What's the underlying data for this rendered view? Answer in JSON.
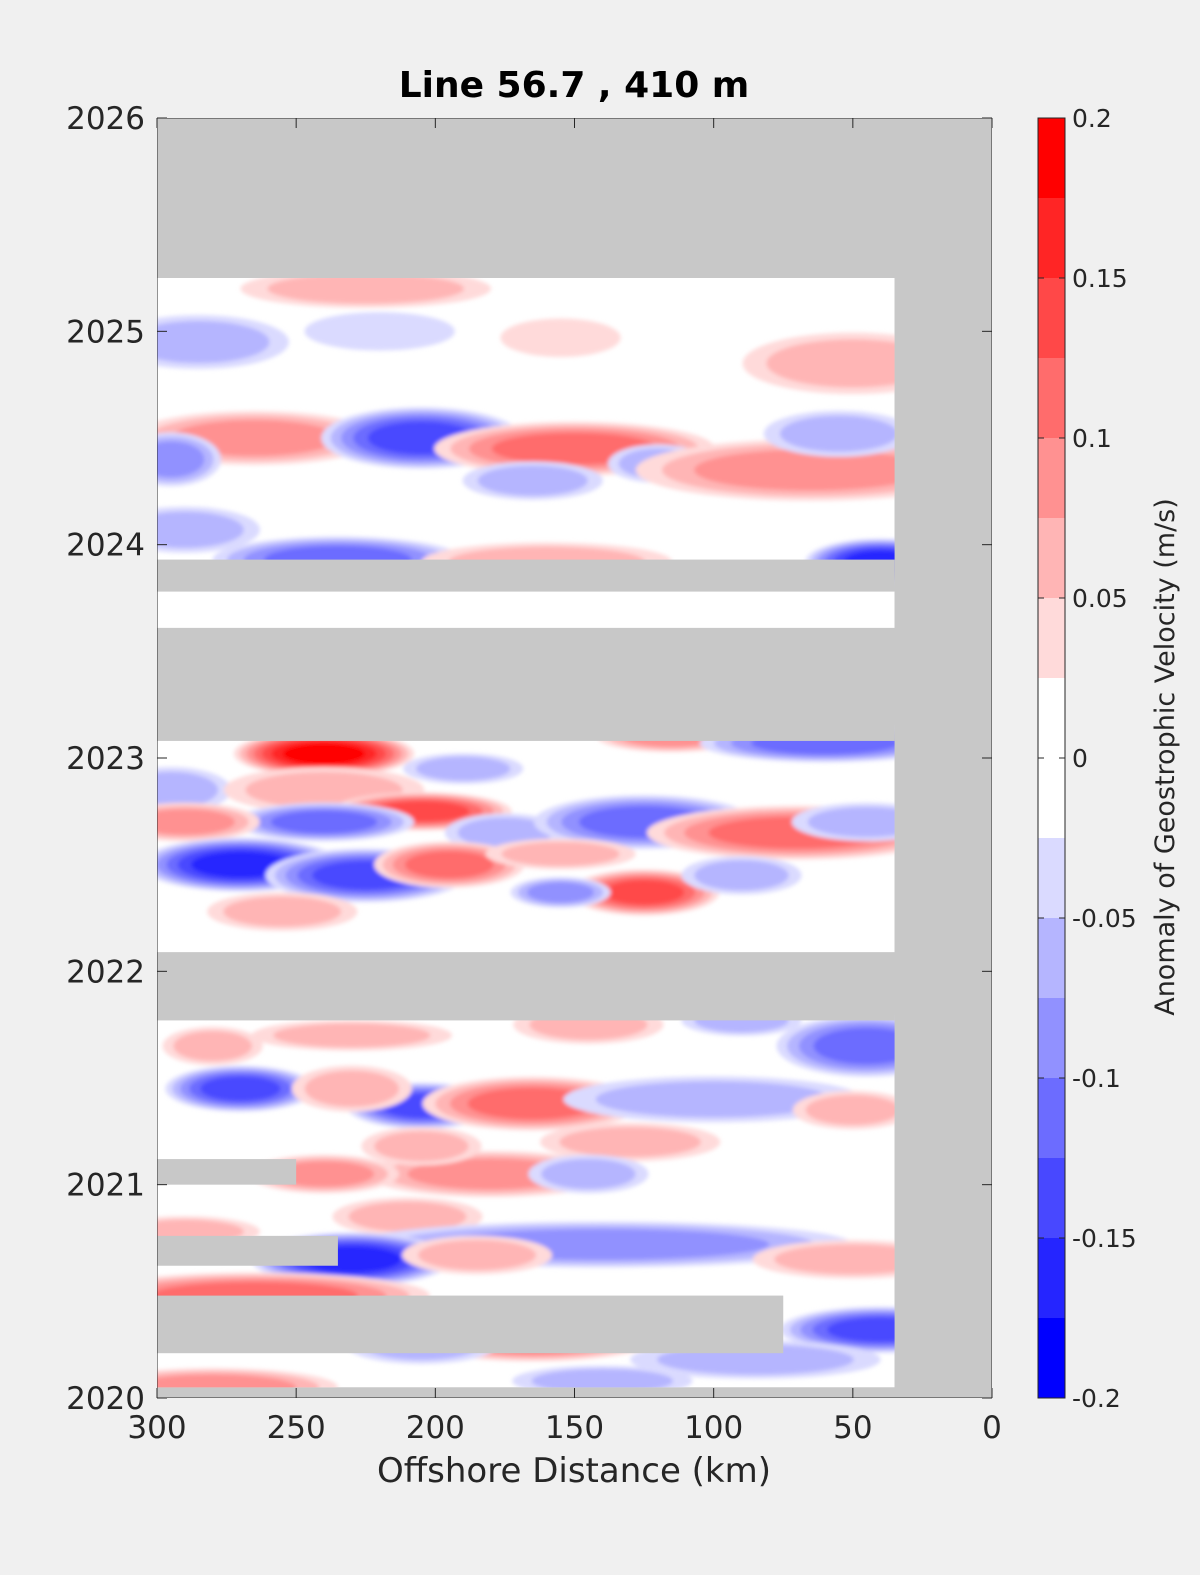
{
  "chart_data": {
    "type": "heatmap",
    "title": "Line 56.7 , 410 m",
    "xlabel": "Offshore Distance (km)",
    "ylabel": "",
    "xlim": [
      300,
      0
    ],
    "ylim": [
      2020,
      2026
    ],
    "x_reversed": true,
    "x_ticks": [
      "300",
      "250",
      "200",
      "150",
      "100",
      "50",
      "0"
    ],
    "y_ticks": [
      "2020",
      "2021",
      "2022",
      "2023",
      "2024",
      "2025",
      "2026"
    ],
    "background_color": "#c8c8c8",
    "colorbar": {
      "label": "Anomaly of Geostrophic Velocity (m/s)",
      "range": [
        -0.2,
        0.2
      ],
      "ticks": [
        "-0.2",
        "-0.15",
        "-0.1",
        "-0.05",
        "0",
        "0.05",
        "0.1",
        "0.15",
        "0.2"
      ],
      "levels": [
        {
          "min": -0.2,
          "max": -0.175,
          "color": "#0000ff"
        },
        {
          "min": -0.175,
          "max": -0.15,
          "color": "#2525ff"
        },
        {
          "min": -0.15,
          "max": -0.125,
          "color": "#4848ff"
        },
        {
          "min": -0.125,
          "max": -0.1,
          "color": "#6c6cff"
        },
        {
          "min": -0.1,
          "max": -0.075,
          "color": "#9191ff"
        },
        {
          "min": -0.075,
          "max": -0.05,
          "color": "#b5b5ff"
        },
        {
          "min": -0.05,
          "max": -0.025,
          "color": "#dadaff"
        },
        {
          "min": -0.025,
          "max": 0.0,
          "color": "#ffffff"
        },
        {
          "min": 0.0,
          "max": 0.025,
          "color": "#ffffff"
        },
        {
          "min": 0.025,
          "max": 0.05,
          "color": "#ffdada"
        },
        {
          "min": 0.05,
          "max": 0.075,
          "color": "#ffb5b5"
        },
        {
          "min": 0.075,
          "max": 0.1,
          "color": "#ff9191"
        },
        {
          "min": 0.1,
          "max": 0.125,
          "color": "#ff6c6c"
        },
        {
          "min": 0.125,
          "max": 0.15,
          "color": "#ff4848"
        },
        {
          "min": 0.15,
          "max": 0.175,
          "color": "#ff2525"
        },
        {
          "min": 0.175,
          "max": 0.2,
          "color": "#ff0000"
        }
      ]
    },
    "data_extent": {
      "x": [
        300,
        35
      ],
      "y": [
        2020.05,
        2025.25
      ]
    },
    "missing_bands": [
      {
        "y0": 2023.78,
        "y1": 2023.93,
        "x0": 300,
        "x1": 35
      },
      {
        "y0": 2023.08,
        "y1": 2023.61,
        "x0": 300,
        "x1": 35
      },
      {
        "y0": 2021.77,
        "y1": 2022.09,
        "x0": 300,
        "x1": 35
      },
      {
        "y0": 2021.0,
        "y1": 2021.12,
        "x0": 300,
        "x1": 250
      },
      {
        "y0": 2020.62,
        "y1": 2020.76,
        "x0": 300,
        "x1": 235
      },
      {
        "y0": 2020.21,
        "y1": 2020.48,
        "x0": 300,
        "x1": 75
      }
    ],
    "features": [
      {
        "x": 285,
        "y": 2024.95,
        "v": -0.06,
        "rx": 18,
        "ry": 0.07
      },
      {
        "x": 225,
        "y": 2025.2,
        "v": 0.07,
        "rx": 25,
        "ry": 0.05
      },
      {
        "x": 155,
        "y": 2024.97,
        "v": 0.04,
        "rx": 12,
        "ry": 0.05
      },
      {
        "x": 50,
        "y": 2024.85,
        "v": 0.07,
        "rx": 22,
        "ry": 0.08
      },
      {
        "x": 220,
        "y": 2025.0,
        "v": -0.04,
        "rx": 15,
        "ry": 0.05
      },
      {
        "x": 265,
        "y": 2024.5,
        "v": 0.08,
        "rx": 25,
        "ry": 0.07
      },
      {
        "x": 205,
        "y": 2024.5,
        "v": -0.13,
        "rx": 20,
        "ry": 0.08
      },
      {
        "x": 150,
        "y": 2024.45,
        "v": 0.1,
        "rx": 28,
        "ry": 0.07
      },
      {
        "x": 120,
        "y": 2024.38,
        "v": -0.07,
        "rx": 10,
        "ry": 0.05
      },
      {
        "x": 65,
        "y": 2024.35,
        "v": 0.09,
        "rx": 35,
        "ry": 0.08
      },
      {
        "x": 55,
        "y": 2024.52,
        "v": -0.05,
        "rx": 15,
        "ry": 0.06
      },
      {
        "x": 165,
        "y": 2024.3,
        "v": -0.06,
        "rx": 14,
        "ry": 0.05
      },
      {
        "x": 295,
        "y": 2024.4,
        "v": -0.09,
        "rx": 10,
        "ry": 0.07
      },
      {
        "x": 290,
        "y": 2024.07,
        "v": -0.07,
        "rx": 15,
        "ry": 0.06
      },
      {
        "x": 235,
        "y": 2023.93,
        "v": -0.1,
        "rx": 25,
        "ry": 0.06
      },
      {
        "x": 160,
        "y": 2023.92,
        "v": 0.06,
        "rx": 25,
        "ry": 0.05
      },
      {
        "x": 40,
        "y": 2023.92,
        "v": -0.17,
        "rx": 15,
        "ry": 0.06
      },
      {
        "x": 240,
        "y": 2023.02,
        "v": 0.19,
        "rx": 18,
        "ry": 0.06
      },
      {
        "x": 190,
        "y": 2022.95,
        "v": -0.06,
        "rx": 12,
        "ry": 0.04
      },
      {
        "x": 115,
        "y": 2023.1,
        "v": 0.08,
        "rx": 15,
        "ry": 0.04
      },
      {
        "x": 60,
        "y": 2023.07,
        "v": -0.1,
        "rx": 25,
        "ry": 0.05
      },
      {
        "x": 295,
        "y": 2022.85,
        "v": -0.07,
        "rx": 12,
        "ry": 0.06
      },
      {
        "x": 240,
        "y": 2022.85,
        "v": 0.06,
        "rx": 20,
        "ry": 0.06
      },
      {
        "x": 205,
        "y": 2022.75,
        "v": 0.14,
        "rx": 18,
        "ry": 0.05
      },
      {
        "x": 240,
        "y": 2022.7,
        "v": -0.1,
        "rx": 18,
        "ry": 0.05
      },
      {
        "x": 175,
        "y": 2022.65,
        "v": -0.07,
        "rx": 12,
        "ry": 0.05
      },
      {
        "x": 125,
        "y": 2022.7,
        "v": -0.1,
        "rx": 22,
        "ry": 0.07
      },
      {
        "x": 70,
        "y": 2022.65,
        "v": 0.11,
        "rx": 30,
        "ry": 0.07
      },
      {
        "x": 45,
        "y": 2022.7,
        "v": -0.07,
        "rx": 15,
        "ry": 0.05
      },
      {
        "x": 290,
        "y": 2022.7,
        "v": 0.08,
        "rx": 15,
        "ry": 0.05
      },
      {
        "x": 270,
        "y": 2022.5,
        "v": -0.16,
        "rx": 20,
        "ry": 0.07
      },
      {
        "x": 225,
        "y": 2022.45,
        "v": -0.13,
        "rx": 20,
        "ry": 0.07
      },
      {
        "x": 195,
        "y": 2022.5,
        "v": 0.1,
        "rx": 15,
        "ry": 0.06
      },
      {
        "x": 125,
        "y": 2022.37,
        "v": 0.15,
        "rx": 15,
        "ry": 0.06
      },
      {
        "x": 155,
        "y": 2022.37,
        "v": -0.08,
        "rx": 10,
        "ry": 0.04
      },
      {
        "x": 90,
        "y": 2022.45,
        "v": -0.07,
        "rx": 12,
        "ry": 0.05
      },
      {
        "x": 255,
        "y": 2022.28,
        "v": 0.06,
        "rx": 15,
        "ry": 0.05
      },
      {
        "x": 155,
        "y": 2022.55,
        "v": 0.06,
        "rx": 15,
        "ry": 0.04
      },
      {
        "x": 280,
        "y": 2021.65,
        "v": 0.05,
        "rx": 10,
        "ry": 0.05
      },
      {
        "x": 230,
        "y": 2021.7,
        "v": 0.05,
        "rx": 20,
        "ry": 0.04
      },
      {
        "x": 145,
        "y": 2021.75,
        "v": 0.05,
        "rx": 15,
        "ry": 0.05
      },
      {
        "x": 45,
        "y": 2021.65,
        "v": -0.1,
        "rx": 18,
        "ry": 0.08
      },
      {
        "x": 90,
        "y": 2021.77,
        "v": -0.05,
        "rx": 12,
        "ry": 0.04
      },
      {
        "x": 270,
        "y": 2021.45,
        "v": -0.13,
        "rx": 15,
        "ry": 0.06
      },
      {
        "x": 205,
        "y": 2021.37,
        "v": -0.15,
        "rx": 15,
        "ry": 0.06
      },
      {
        "x": 165,
        "y": 2021.38,
        "v": 0.11,
        "rx": 22,
        "ry": 0.07
      },
      {
        "x": 230,
        "y": 2021.45,
        "v": 0.06,
        "rx": 12,
        "ry": 0.06
      },
      {
        "x": 100,
        "y": 2021.4,
        "v": -0.05,
        "rx": 30,
        "ry": 0.06
      },
      {
        "x": 50,
        "y": 2021.35,
        "v": 0.05,
        "rx": 12,
        "ry": 0.05
      },
      {
        "x": 180,
        "y": 2021.05,
        "v": 0.09,
        "rx": 25,
        "ry": 0.06
      },
      {
        "x": 130,
        "y": 2021.2,
        "v": 0.07,
        "rx": 18,
        "ry": 0.05
      },
      {
        "x": 205,
        "y": 2021.18,
        "v": 0.06,
        "rx": 12,
        "ry": 0.05
      },
      {
        "x": 240,
        "y": 2021.05,
        "v": 0.08,
        "rx": 15,
        "ry": 0.05
      },
      {
        "x": 145,
        "y": 2021.05,
        "v": -0.06,
        "rx": 12,
        "ry": 0.05
      },
      {
        "x": 210,
        "y": 2020.85,
        "v": 0.06,
        "rx": 15,
        "ry": 0.05
      },
      {
        "x": 140,
        "y": 2020.72,
        "v": -0.08,
        "rx": 50,
        "ry": 0.06
      },
      {
        "x": 230,
        "y": 2020.65,
        "v": -0.16,
        "rx": 20,
        "ry": 0.07
      },
      {
        "x": 185,
        "y": 2020.67,
        "v": 0.07,
        "rx": 15,
        "ry": 0.05
      },
      {
        "x": 290,
        "y": 2020.78,
        "v": 0.06,
        "rx": 15,
        "ry": 0.04
      },
      {
        "x": 50,
        "y": 2020.65,
        "v": 0.06,
        "rx": 20,
        "ry": 0.05
      },
      {
        "x": 265,
        "y": 2020.48,
        "v": 0.11,
        "rx": 35,
        "ry": 0.06
      },
      {
        "x": 165,
        "y": 2020.28,
        "v": 0.1,
        "rx": 25,
        "ry": 0.06
      },
      {
        "x": 40,
        "y": 2020.32,
        "v": -0.15,
        "rx": 20,
        "ry": 0.06
      },
      {
        "x": 85,
        "y": 2020.18,
        "v": -0.06,
        "rx": 25,
        "ry": 0.05
      },
      {
        "x": 205,
        "y": 2020.25,
        "v": -0.07,
        "rx": 15,
        "ry": 0.05
      },
      {
        "x": 280,
        "y": 2020.05,
        "v": 0.09,
        "rx": 25,
        "ry": 0.05
      },
      {
        "x": 140,
        "y": 2020.08,
        "v": -0.05,
        "rx": 18,
        "ry": 0.04
      }
    ]
  }
}
